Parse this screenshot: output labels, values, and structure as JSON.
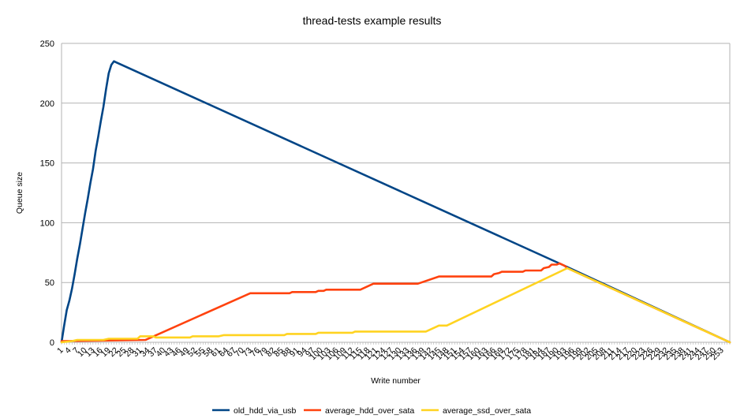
{
  "chart_data": {
    "type": "line",
    "title": "thread-tests example results",
    "xlabel": "Write number",
    "ylabel": "Queue size",
    "xlim": [
      1,
      256
    ],
    "ylim": [
      0,
      250
    ],
    "yticks": [
      0,
      50,
      100,
      150,
      200,
      250
    ],
    "xticks": [
      1,
      4,
      7,
      10,
      13,
      16,
      19,
      22,
      25,
      28,
      31,
      34,
      37,
      40,
      43,
      46,
      49,
      52,
      55,
      58,
      61,
      64,
      67,
      70,
      73,
      76,
      79,
      82,
      85,
      88,
      91,
      94,
      97,
      100,
      103,
      106,
      109,
      112,
      115,
      118,
      121,
      124,
      127,
      130,
      133,
      136,
      139,
      142,
      145,
      148,
      151,
      154,
      157,
      160,
      163,
      166,
      169,
      172,
      175,
      178,
      181,
      184,
      187,
      190,
      193,
      196,
      199,
      202,
      205,
      208,
      211,
      214,
      217,
      220,
      223,
      226,
      229,
      232,
      235,
      238,
      241,
      244,
      247,
      250,
      253
    ],
    "grid": true,
    "legend_position": "bottom",
    "series": [
      {
        "name": "old_hdd_via_usb",
        "color": "#004586",
        "points": [
          [
            1,
            0
          ],
          [
            2,
            14
          ],
          [
            3,
            27
          ],
          [
            4,
            35
          ],
          [
            5,
            45
          ],
          [
            6,
            57
          ],
          [
            7,
            70
          ],
          [
            8,
            82
          ],
          [
            9,
            95
          ],
          [
            10,
            108
          ],
          [
            11,
            120
          ],
          [
            12,
            133
          ],
          [
            13,
            145
          ],
          [
            14,
            160
          ],
          [
            15,
            172
          ],
          [
            16,
            185
          ],
          [
            17,
            197
          ],
          [
            18,
            212
          ],
          [
            19,
            225
          ],
          [
            20,
            232
          ],
          [
            21,
            235
          ],
          [
            22,
            234
          ],
          [
            193,
            64
          ],
          [
            256,
            0
          ]
        ]
      },
      {
        "name": "average_hdd_over_sata",
        "color": "#ff420e",
        "points": [
          [
            1,
            1
          ],
          [
            33,
            2
          ],
          [
            73,
            41
          ],
          [
            88,
            41
          ],
          [
            89,
            42
          ],
          [
            98,
            42
          ],
          [
            99,
            43
          ],
          [
            101,
            43
          ],
          [
            102,
            44
          ],
          [
            115,
            44
          ],
          [
            120,
            49
          ],
          [
            137,
            49
          ],
          [
            145,
            55
          ],
          [
            165,
            55
          ],
          [
            166,
            57
          ],
          [
            168,
            58
          ],
          [
            169,
            59
          ],
          [
            177,
            59
          ],
          [
            178,
            60
          ],
          [
            184,
            60
          ],
          [
            185,
            62
          ],
          [
            187,
            63
          ],
          [
            188,
            65
          ],
          [
            190,
            65
          ],
          [
            191,
            66
          ],
          [
            193,
            64
          ],
          [
            194,
            62
          ],
          [
            256,
            0
          ]
        ]
      },
      {
        "name": "average_ssd_over_sata",
        "color": "#ffd320",
        "points": [
          [
            1,
            0
          ],
          [
            5,
            1
          ],
          [
            7,
            2
          ],
          [
            17,
            2
          ],
          [
            19,
            3
          ],
          [
            30,
            3
          ],
          [
            31,
            5
          ],
          [
            36,
            5
          ],
          [
            37,
            4
          ],
          [
            50,
            4
          ],
          [
            51,
            5
          ],
          [
            61,
            5
          ],
          [
            63,
            6
          ],
          [
            86,
            6
          ],
          [
            87,
            7
          ],
          [
            98,
            7
          ],
          [
            99,
            8
          ],
          [
            112,
            8
          ],
          [
            113,
            9
          ],
          [
            140,
            9
          ],
          [
            145,
            14
          ],
          [
            148,
            14
          ],
          [
            194,
            62
          ],
          [
            256,
            0
          ]
        ]
      }
    ]
  }
}
